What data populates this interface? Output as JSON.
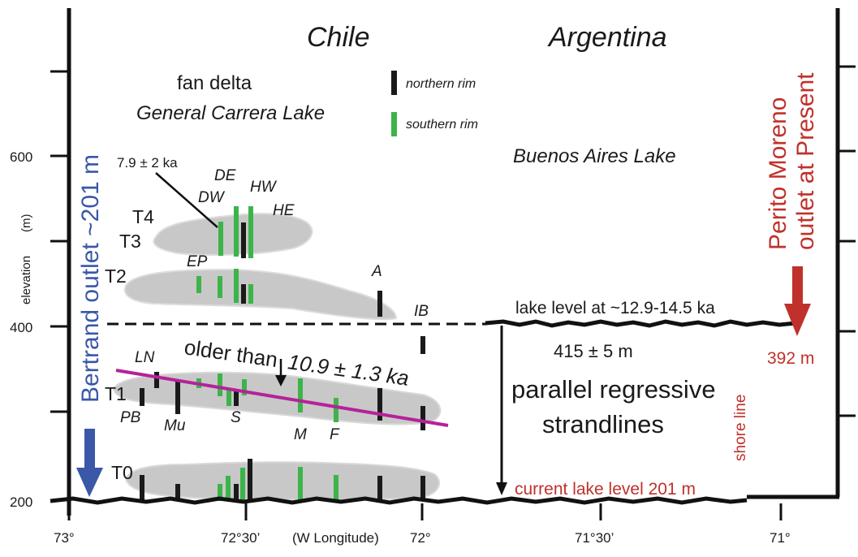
{
  "axes": {
    "y_unit": "(m)",
    "y_label": "elevation",
    "y_ticks": [
      "600",
      "400",
      "200"
    ],
    "x_ticks": [
      "73°",
      "72°30’",
      "72°",
      "71°30’",
      "71°"
    ],
    "x_label": "(W  Longitude)"
  },
  "regions": {
    "left": "Chile",
    "right": "Argentina"
  },
  "lakes": {
    "general_carrera_a": "fan delta",
    "general_carrera_b": "General Carrera Lake",
    "buenos_aires": "Buenos Aires Lake"
  },
  "legend": {
    "northern": {
      "label": "northern rim",
      "color": "#1a1a1a"
    },
    "southern": {
      "label": "southern rim",
      "color": "#3cb44a"
    }
  },
  "terraces": [
    "T4",
    "T3",
    "T2",
    "T1",
    "T0"
  ],
  "sites": {
    "DE": "DE",
    "DW": "DW",
    "HW": "HW",
    "HE": "HE",
    "EP": "EP",
    "A": "A",
    "IB": "IB",
    "LN": "LN",
    "PB": "PB",
    "Mu": "Mu",
    "S": "S",
    "M": "M",
    "F": "F"
  },
  "annotations": {
    "age_t4": "7.9 ± 2 ka",
    "older_prefix": "older than",
    "older_age": "10.9 ± 1.3 ka",
    "lake_level_old": "lake level at ~12.9-14.5 ka",
    "elev_415": "415 ± 5 m",
    "strand_1": "parallel regressive",
    "strand_2": "strandlines",
    "shore_line": "shore line",
    "current_level": "current lake level 201 m",
    "bertrand": "Bertrand outlet ~201 m",
    "perito_1": "Perito Moreno",
    "perito_2": "outlet at Present",
    "elev_392": "392 m"
  },
  "colors": {
    "blue": "#3a57a8",
    "red": "#c0312b",
    "magenta": "#b5229a",
    "terrace_fill": "#c8c8c8",
    "green": "#3cb44a"
  }
}
